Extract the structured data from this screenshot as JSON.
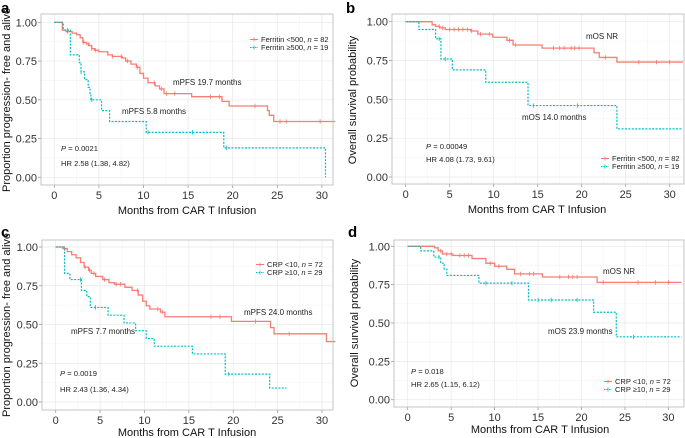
{
  "figure": {
    "panels": [
      "a",
      "b",
      "c",
      "d"
    ]
  },
  "chart_data": [
    {
      "panel_label": "a",
      "type": "line",
      "subtype": "kaplan-meier step",
      "title": "",
      "xlabel": "Months from CAR T Infusion",
      "ylabel": "Proportion progression- free and alive",
      "xlim": [
        0,
        31.5
      ],
      "ylim": [
        0,
        1
      ],
      "xticks": [
        "0",
        "5",
        "10",
        "15",
        "20",
        "25",
        "30"
      ],
      "xtick_values": [
        0,
        5,
        10,
        15,
        20,
        25,
        30
      ],
      "yticks": [
        "0.00",
        "0.25",
        "0.50",
        "0.75",
        "1.00"
      ],
      "ytick_values": [
        0,
        0.25,
        0.5,
        0.75,
        1
      ],
      "grid": true,
      "legend": {
        "placement": "top-right"
      },
      "series": [
        {
          "group": "Ferritin <500, ",
          "n_symbol": "n",
          "n_text": " = 82",
          "n": 82,
          "color": "#F8766D",
          "line_style": "solid",
          "steps": [
            [
              0,
              1
            ],
            [
              0.9,
              0.95
            ],
            [
              1.3,
              0.94
            ],
            [
              2.0,
              0.93
            ],
            [
              2.5,
              0.92
            ],
            [
              2.9,
              0.9
            ],
            [
              3.2,
              0.87
            ],
            [
              3.6,
              0.86
            ],
            [
              3.9,
              0.85
            ],
            [
              4.2,
              0.83
            ],
            [
              4.5,
              0.82
            ],
            [
              5.0,
              0.81
            ],
            [
              6.0,
              0.79
            ],
            [
              6.5,
              0.78
            ],
            [
              7.6,
              0.77
            ],
            [
              8.0,
              0.75
            ],
            [
              8.6,
              0.73
            ],
            [
              9.2,
              0.71
            ],
            [
              9.6,
              0.67
            ],
            [
              10.0,
              0.64
            ],
            [
              10.5,
              0.61
            ],
            [
              11.3,
              0.59
            ],
            [
              11.8,
              0.57
            ],
            [
              12.3,
              0.54
            ],
            [
              15.4,
              0.52
            ],
            [
              18.8,
              0.49
            ],
            [
              19.6,
              0.46
            ],
            [
              23.9,
              0.43
            ],
            [
              24.1,
              0.4
            ],
            [
              24.6,
              0.36
            ]
          ],
          "censored": [
            1.5,
            3.3,
            3.8,
            4.2,
            4.6,
            6.5,
            7.5,
            8.2,
            9.3,
            11.2,
            12.0,
            12.6,
            13.5,
            17.5,
            18.5,
            22.5,
            25.3,
            26.0,
            29.8
          ],
          "end": 31.5
        },
        {
          "group": "Ferritin ≥500, ",
          "n_symbol": "n",
          "n_text": " = 19",
          "n": 19,
          "color": "#00BFC4",
          "line_style": "dotted",
          "steps": [
            [
              0,
              1
            ],
            [
              1.0,
              0.95
            ],
            [
              1.8,
              0.79
            ],
            [
              2.8,
              0.74
            ],
            [
              3.0,
              0.68
            ],
            [
              3.4,
              0.63
            ],
            [
              3.8,
              0.58
            ],
            [
              4.0,
              0.53
            ],
            [
              4.1,
              0.5
            ],
            [
              5.3,
              0.43
            ],
            [
              6.2,
              0.36
            ],
            [
              10.3,
              0.29
            ],
            [
              19.0,
              0.19
            ],
            [
              30.4,
              0.0
            ]
          ],
          "censored": [
            1.5,
            3.0,
            4.2,
            10.5,
            15.5,
            19.3
          ],
          "end": 30.4
        }
      ],
      "annotations": {
        "p_symbol": "P",
        "p_text": " = 0.0021",
        "p_value": 0.0021,
        "hr": "HR 2.58 (1.38, 4.82)",
        "medians": [
          "mPFS 19.7 months",
          "mPFS 5.8 months"
        ]
      }
    },
    {
      "panel_label": "b",
      "type": "line",
      "subtype": "kaplan-meier step",
      "title": "",
      "xlabel": "Months from CAR T Infusion",
      "ylabel": "Overall survival probability",
      "xlim": [
        0,
        31.5
      ],
      "ylim": [
        0,
        1
      ],
      "xticks": [
        "0",
        "5",
        "10",
        "15",
        "20",
        "25",
        "30"
      ],
      "xtick_values": [
        0,
        5,
        10,
        15,
        20,
        25,
        30
      ],
      "yticks": [
        "0.00",
        "0.25",
        "0.50",
        "0.75",
        "1.00"
      ],
      "ytick_values": [
        0,
        0.25,
        0.5,
        0.75,
        1
      ],
      "grid": true,
      "legend": {
        "placement": "bottom-right"
      },
      "series": [
        {
          "group": "Ferritin <500, ",
          "n_symbol": "n",
          "n_text": " = 82",
          "n": 82,
          "color": "#F8766D",
          "line_style": "solid",
          "steps": [
            [
              0,
              1
            ],
            [
              3.0,
              0.98
            ],
            [
              3.4,
              0.97
            ],
            [
              3.9,
              0.96
            ],
            [
              4.5,
              0.95
            ],
            [
              7.4,
              0.94
            ],
            [
              8.2,
              0.92
            ],
            [
              9.9,
              0.9
            ],
            [
              11.5,
              0.88
            ],
            [
              12.2,
              0.85
            ],
            [
              15.5,
              0.83
            ],
            [
              21.4,
              0.8
            ],
            [
              22.0,
              0.77
            ],
            [
              24.0,
              0.74
            ]
          ],
          "censored": [
            3.8,
            4.2,
            5.0,
            5.5,
            6.0,
            6.5,
            7.0,
            7.5,
            8.5,
            9.5,
            11.8,
            12.5,
            16.8,
            17.5,
            18.0,
            18.8,
            19.2,
            19.7,
            22.7,
            26.5,
            28.5,
            30.0
          ],
          "end": 31.5
        },
        {
          "group": "Ferritin ≥500, ",
          "n_symbol": "n",
          "n_text": " = 19",
          "n": 19,
          "color": "#00BFC4",
          "line_style": "dotted",
          "steps": [
            [
              0,
              1
            ],
            [
              1.5,
              0.95
            ],
            [
              3.4,
              0.89
            ],
            [
              4.0,
              0.76
            ],
            [
              5.3,
              0.69
            ],
            [
              9.1,
              0.61
            ],
            [
              13.9,
              0.46
            ],
            [
              24.0,
              0.31
            ]
          ],
          "censored": [
            3.8,
            4.5,
            14.5,
            19.5
          ],
          "end": 31.5
        }
      ],
      "annotations": {
        "p_symbol": "P",
        "p_text": " = 0.00049",
        "p_value": 0.00049,
        "hr": "HR 4.08 (1.73, 9.61)",
        "medians": [
          "mOS NR",
          "mOS 14.0 months"
        ]
      }
    },
    {
      "panel_label": "c",
      "type": "line",
      "subtype": "kaplan-meier step",
      "title": "",
      "xlabel": "Months from CAR T Infusion",
      "ylabel": "Proportion progression- free and alive",
      "xlim": [
        0,
        31.5
      ],
      "ylim": [
        0,
        1
      ],
      "xticks": [
        "0",
        "5",
        "10",
        "15",
        "20",
        "25",
        "30"
      ],
      "xtick_values": [
        0,
        5,
        10,
        15,
        20,
        25,
        30
      ],
      "yticks": [
        "0.00",
        "0.25",
        "0.50",
        "0.75",
        "1.00"
      ],
      "ytick_values": [
        0,
        0.25,
        0.5,
        0.75,
        1
      ],
      "grid": true,
      "legend": {
        "placement": "top-right"
      },
      "series": [
        {
          "group": "CRP <10, ",
          "n_symbol": "n",
          "n_text": " = 72",
          "n": 72,
          "color": "#F8766D",
          "line_style": "solid",
          "steps": [
            [
              0,
              1
            ],
            [
              0.8,
              0.99
            ],
            [
              1.3,
              0.97
            ],
            [
              1.8,
              0.95
            ],
            [
              2.3,
              0.93
            ],
            [
              2.8,
              0.9
            ],
            [
              3.2,
              0.87
            ],
            [
              3.7,
              0.85
            ],
            [
              4.0,
              0.83
            ],
            [
              4.5,
              0.81
            ],
            [
              5.3,
              0.79
            ],
            [
              6.0,
              0.77
            ],
            [
              6.6,
              0.76
            ],
            [
              7.8,
              0.74
            ],
            [
              8.6,
              0.72
            ],
            [
              9.3,
              0.69
            ],
            [
              9.8,
              0.65
            ],
            [
              10.2,
              0.62
            ],
            [
              10.6,
              0.6
            ],
            [
              11.8,
              0.58
            ],
            [
              12.3,
              0.55
            ],
            [
              19.8,
              0.52
            ],
            [
              24.2,
              0.48
            ],
            [
              24.6,
              0.44
            ],
            [
              30.5,
              0.39
            ]
          ],
          "censored": [
            1.0,
            3.3,
            3.8,
            4.3,
            5.5,
            6.8,
            7.3,
            9.2,
            11.5,
            12.0,
            17.5,
            18.5,
            22.5,
            26.3
          ],
          "end": 31.5
        },
        {
          "group": "CRP ≥10, ",
          "n_symbol": "n",
          "n_text": " = 29",
          "n": 29,
          "color": "#00BFC4",
          "line_style": "dotted",
          "steps": [
            [
              0,
              1
            ],
            [
              1.0,
              0.83
            ],
            [
              1.6,
              0.79
            ],
            [
              2.9,
              0.72
            ],
            [
              3.5,
              0.68
            ],
            [
              3.9,
              0.61
            ],
            [
              5.9,
              0.56
            ],
            [
              7.7,
              0.51
            ],
            [
              9.0,
              0.46
            ],
            [
              10.2,
              0.41
            ],
            [
              11.1,
              0.36
            ],
            [
              15.4,
              0.31
            ],
            [
              19.1,
              0.18
            ],
            [
              24.1,
              0.09
            ]
          ],
          "censored": [
            2.8,
            4.5,
            19.5
          ],
          "end": 26.0
        }
      ],
      "annotations": {
        "p_symbol": "P",
        "p_text": " = 0.0019",
        "p_value": 0.0019,
        "hr": "HR 2.43 (1.36, 4.34)",
        "medians": [
          "mPFS 24.0 months",
          "mPFS 7.7 months"
        ]
      }
    },
    {
      "panel_label": "d",
      "type": "line",
      "subtype": "kaplan-meier step",
      "title": "",
      "xlabel": "Months from CAR T Infusion",
      "ylabel": "Overall survival probability",
      "xlim": [
        0,
        31.5
      ],
      "ylim": [
        0,
        1
      ],
      "xticks": [
        "0",
        "5",
        "10",
        "15",
        "20",
        "25",
        "30"
      ],
      "xtick_values": [
        0,
        5,
        10,
        15,
        20,
        25,
        30
      ],
      "yticks": [
        "0.00",
        "0.25",
        "0.50",
        "0.75",
        "1.00"
      ],
      "ytick_values": [
        0,
        0.25,
        0.5,
        0.75,
        1
      ],
      "grid": true,
      "legend": {
        "placement": "bottom-right"
      },
      "series": [
        {
          "group": "CRP <10, ",
          "n_symbol": "n",
          "n_text": " = 72",
          "n": 72,
          "color": "#F8766D",
          "line_style": "solid",
          "steps": [
            [
              0,
              1
            ],
            [
              3.1,
              0.99
            ],
            [
              3.5,
              0.97
            ],
            [
              4.0,
              0.95
            ],
            [
              5.2,
              0.94
            ],
            [
              7.4,
              0.92
            ],
            [
              9.0,
              0.89
            ],
            [
              10.0,
              0.87
            ],
            [
              11.4,
              0.85
            ],
            [
              12.3,
              0.82
            ],
            [
              15.5,
              0.8
            ],
            [
              21.8,
              0.765
            ]
          ],
          "censored": [
            3.8,
            4.5,
            5.0,
            6.0,
            6.5,
            7.0,
            9.5,
            10.5,
            13.0,
            14.0,
            14.5,
            17.5,
            18.5,
            19.0,
            19.5,
            22.5,
            26.5,
            28.5,
            30.0
          ],
          "end": 31.5
        },
        {
          "group": "CRP ≥10, ",
          "n_symbol": "n",
          "n_text": " = 29",
          "n": 29,
          "color": "#00BFC4",
          "line_style": "dotted",
          "steps": [
            [
              0,
              1
            ],
            [
              1.5,
              0.97
            ],
            [
              3.0,
              0.93
            ],
            [
              3.8,
              0.89
            ],
            [
              4.2,
              0.85
            ],
            [
              4.5,
              0.81
            ],
            [
              8.2,
              0.76
            ],
            [
              13.9,
              0.65
            ],
            [
              21.4,
              0.57
            ],
            [
              24.0,
              0.41
            ]
          ],
          "censored": [
            3.6,
            9.0,
            12.0,
            15.0,
            16.5,
            19.5,
            26.0
          ],
          "end": 31.5
        }
      ],
      "annotations": {
        "p_symbol": "P",
        "p_text": " = 0.018",
        "p_value": 0.018,
        "hr": "HR 2.65 (1.15, 6.12)",
        "medians": [
          "mOS NR",
          "mOS 23.9 months"
        ]
      }
    }
  ]
}
